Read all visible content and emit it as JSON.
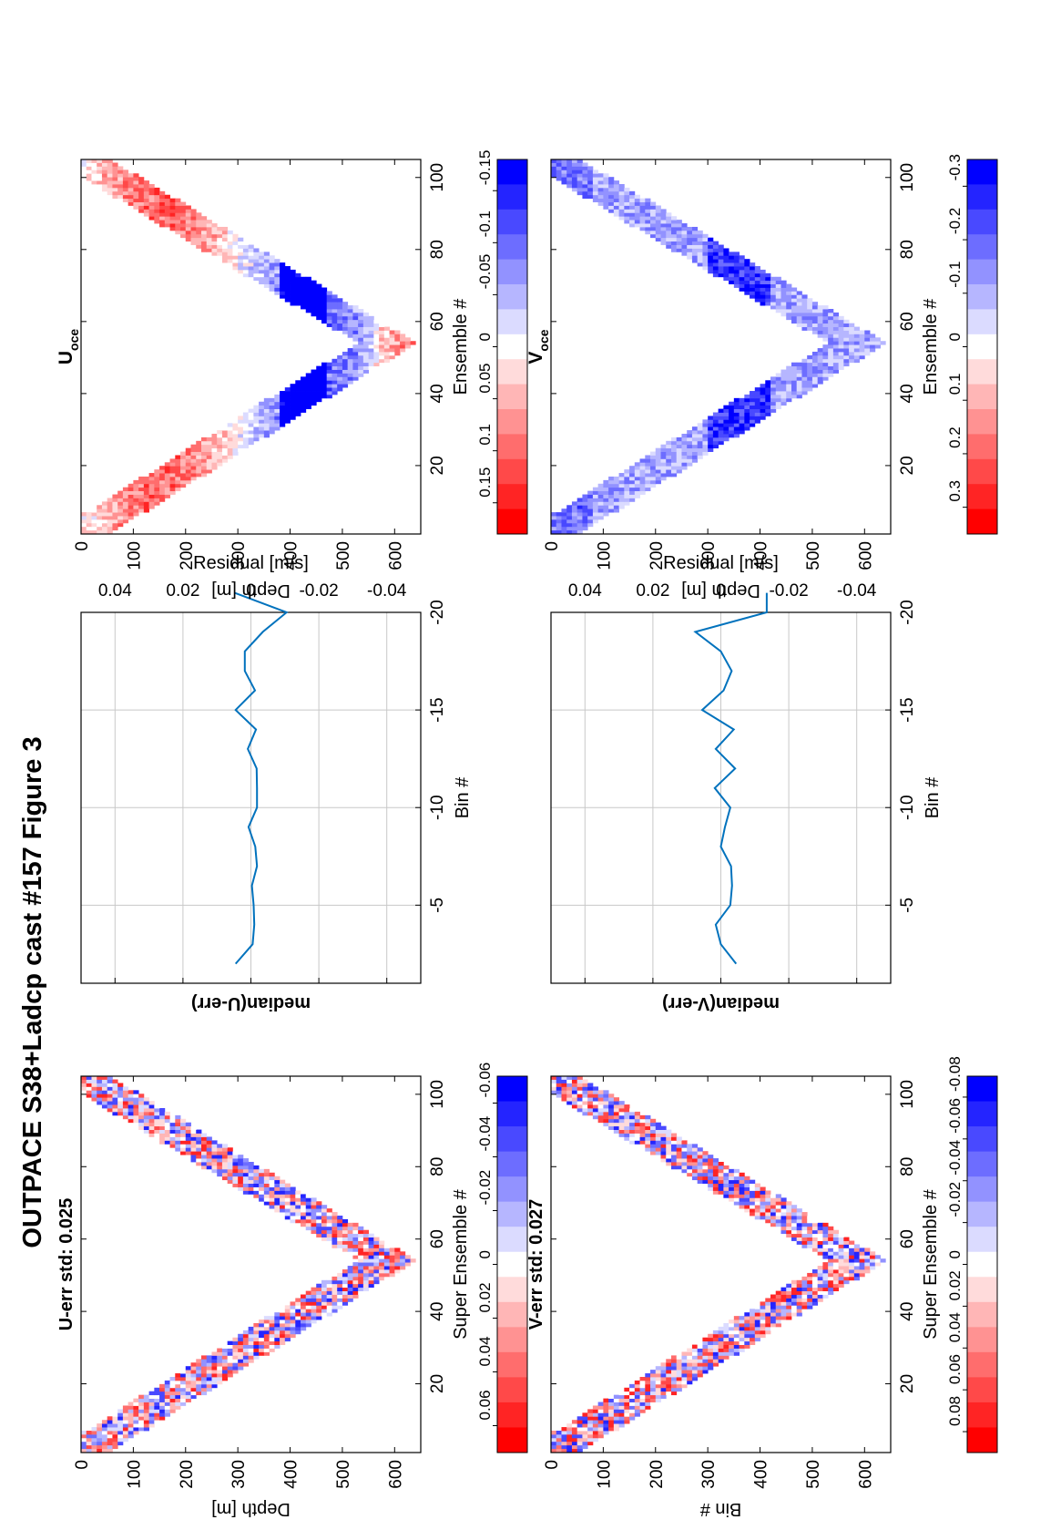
{
  "figure": {
    "title": "OUTPACE S38+Ladcp cast #157  Figure 3"
  },
  "colors": {
    "line": "#0072bd",
    "grid": "#c8c8c8",
    "red": "#ff0000",
    "white": "#ffffff",
    "blue": "#0000ff"
  },
  "chart_data": [
    {
      "id": "u_err",
      "type": "heatmap",
      "title": "U-err std: 0.025",
      "xlabel": "Super Ensemble #",
      "ylabel": "Depth [m]",
      "xlim": [
        1,
        105
      ],
      "ylim": [
        650,
        0
      ],
      "xticks": [
        "20",
        "40",
        "60",
        "80",
        "100"
      ],
      "yticks": [
        "0",
        "100",
        "200",
        "300",
        "400",
        "500",
        "600"
      ],
      "colorbar_ticks": [
        "0.06",
        "0.04",
        "0.02",
        "0",
        "-0.02",
        "-0.04",
        "-0.06"
      ],
      "colorbar_range": [
        -0.07,
        0.07
      ],
      "pattern": "V-shaped profile, down-cast ensembles 1-54 to ~640 m, up-cast 54-105"
    },
    {
      "id": "u_median",
      "type": "line",
      "title": "median(U-err)",
      "xlabel": "Residual [m/s]",
      "ylabel": "Bin #",
      "xlim": [
        -0.05,
        0.05
      ],
      "ylim": [
        -20,
        -1
      ],
      "xticks": [
        "-0.04",
        "-0.02",
        "0",
        "0.02",
        "0.04"
      ],
      "yticks": [
        "-5",
        "-10",
        "-15",
        "-20"
      ],
      "grid": true,
      "bins": [
        -2,
        -3,
        -4,
        -5,
        -6,
        -7,
        -8,
        -9,
        -10,
        -11,
        -12,
        -13,
        -14,
        -15,
        -16,
        -17,
        -18,
        -19,
        -20,
        -21
      ],
      "values": [
        0.0045,
        -0.0005,
        -0.001,
        -0.0008,
        -0.0003,
        -0.0018,
        -0.0013,
        0.0007,
        -0.0018,
        -0.0018,
        -0.0017,
        0.0009,
        -0.0015,
        0.0045,
        -0.0012,
        0.0018,
        0.0018,
        -0.0035,
        -0.0105,
        0.0048
      ]
    },
    {
      "id": "u_oce",
      "type": "heatmap",
      "title": "U",
      "title_sub": "oce",
      "xlabel": "Ensemble #",
      "ylabel": "Depth [m]",
      "xlim": [
        1,
        105
      ],
      "ylim": [
        650,
        0
      ],
      "xticks": [
        "20",
        "40",
        "60",
        "80",
        "100"
      ],
      "yticks": [
        "0",
        "100",
        "200",
        "300",
        "400",
        "500",
        "600"
      ],
      "colorbar_ticks": [
        "0.15",
        "0.1",
        "0.05",
        "0",
        "-0.05",
        "-0.1",
        "-0.15"
      ],
      "colorbar_range": [
        -0.18,
        0.18
      ],
      "pattern": "V-shaped profile with coherent velocity bands"
    },
    {
      "id": "v_err",
      "type": "heatmap",
      "title": "V-err std: 0.027",
      "xlabel": "Super Ensemble #",
      "ylabel": "Bin #",
      "xlim": [
        1,
        105
      ],
      "ylim": [
        650,
        0
      ],
      "xticks": [
        "20",
        "40",
        "60",
        "80",
        "100"
      ],
      "yticks": [
        "0",
        "100",
        "200",
        "300",
        "400",
        "500",
        "600"
      ],
      "colorbar_ticks": [
        "0.08",
        "0.06",
        "0.04",
        "0.02",
        "0",
        "-0.02",
        "-0.04",
        "-0.06",
        "-0.08"
      ],
      "colorbar_range": [
        -0.09,
        0.09
      ],
      "pattern": "V-shaped profile, noisy residuals"
    },
    {
      "id": "v_median",
      "type": "line",
      "title": "median(V-err)",
      "xlabel": "Residual [m/s]",
      "ylabel": "Bin #",
      "xlim": [
        -0.05,
        0.05
      ],
      "ylim": [
        -20,
        -1
      ],
      "xticks": [
        "-0.04",
        "-0.02",
        "0",
        "0.02",
        "0.04"
      ],
      "yticks": [
        "-5",
        "-10",
        "-15",
        "-20"
      ],
      "grid": true,
      "bins": [
        -2,
        -3,
        -4,
        -5,
        -6,
        -7,
        -8,
        -9,
        -10,
        -11,
        -12,
        -13,
        -14,
        -15,
        -16,
        -17,
        -18,
        -19,
        -20,
        -21
      ],
      "values": [
        -0.0045,
        0.0,
        0.0015,
        -0.0028,
        -0.0033,
        -0.003,
        0.0,
        -0.0012,
        -0.0028,
        0.0018,
        -0.0042,
        0.0015,
        -0.0038,
        0.0055,
        -0.0008,
        -0.0032,
        0.0,
        0.0075,
        -0.0135,
        -0.0135
      ]
    },
    {
      "id": "v_oce",
      "type": "heatmap",
      "title": "V",
      "title_sub": "oce",
      "xlabel": "Ensemble #",
      "ylabel": "Depth [m]",
      "xlim": [
        1,
        105
      ],
      "ylim": [
        650,
        0
      ],
      "xticks": [
        "20",
        "40",
        "60",
        "80",
        "100"
      ],
      "yticks": [
        "0",
        "100",
        "200",
        "300",
        "400",
        "500",
        "600"
      ],
      "colorbar_ticks": [
        "0.3",
        "0.2",
        "0.1",
        "0",
        "-0.1",
        "-0.2",
        "-0.3"
      ],
      "colorbar_range": [
        -0.35,
        0.35
      ],
      "pattern": "V-shaped profile, mostly negative (blue)"
    }
  ]
}
